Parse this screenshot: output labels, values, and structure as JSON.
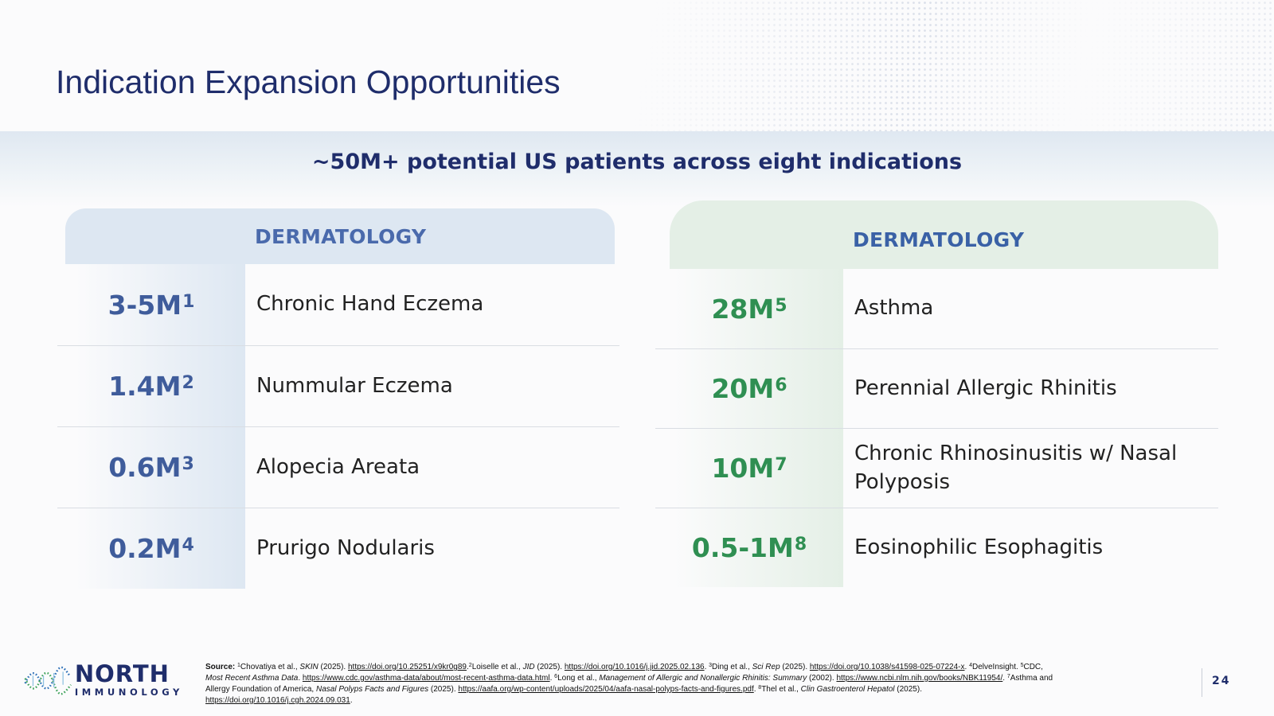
{
  "title": "Indication Expansion Opportunities",
  "subtitle": "~50M+ potential US patients across eight indications",
  "left_panel": {
    "header": "DERMATOLOGY",
    "rows": [
      {
        "value": "3-5M",
        "ref": "1",
        "label": "Chronic Hand Eczema"
      },
      {
        "value": "1.4M",
        "ref": "2",
        "label": "Nummular Eczema"
      },
      {
        "value": "0.6M",
        "ref": "3",
        "label": "Alopecia Areata"
      },
      {
        "value": "0.2M",
        "ref": "4",
        "label": "Prurigo Nodularis"
      }
    ]
  },
  "right_panel": {
    "header": "DERMATOLOGY",
    "rows": [
      {
        "value": "28M",
        "ref": "5",
        "label": "Asthma"
      },
      {
        "value": "20M",
        "ref": "6",
        "label": "Perennial Allergic Rhinitis"
      },
      {
        "value": "10M",
        "ref": "7",
        "label": "Chronic Rhinosinusitis w/ Nasal Polyposis"
      },
      {
        "value": "0.5-1M",
        "ref": "8",
        "label": "Eosinophilic Esophagitis"
      }
    ]
  },
  "logo": {
    "line1": "NORTH",
    "line2": "IMMUNOLOGY"
  },
  "source": {
    "label": "Source:",
    "s1": {
      "sup": "1",
      "text": "Chovatiya et al., ",
      "ital": "SKIN",
      "after": " (2025). ",
      "link": "https://doi.org/10.25251/x9kr0g89",
      "end": "."
    },
    "s2": {
      "sup": "2",
      "text": "Loiselle et al., ",
      "ital": "JID",
      "after": " (2025). ",
      "link": "https://doi.org/10.1016/j.jid.2025.02.136",
      "end": ". "
    },
    "s3": {
      "sup": "3",
      "text": "Ding et al., ",
      "ital": "Sci Rep",
      "after": " (2025). ",
      "link": "https://doi.org/10.1038/s41598-025-07224-x",
      "end": ". "
    },
    "s4": {
      "sup": "4",
      "text": "DelveInsight. "
    },
    "s5": {
      "sup": "5",
      "text": "CDC, ",
      "ital": "Most Recent Asthma Data",
      "after": ". ",
      "link": "https://www.cdc.gov/asthma-data/about/most-recent-asthma-data.html",
      "end": ". "
    },
    "s6": {
      "sup": "6",
      "text": "Long et al., ",
      "ital": "Management of Allergic and Nonallergic Rhinitis: Summary",
      "after": " (2002). ",
      "link": "https://www.ncbi.nlm.nih.gov/books/NBK11954/",
      "end": ". "
    },
    "s7": {
      "sup": "7",
      "text": "Asthma and Allergy Foundation of America, ",
      "ital": "Nasal Polyps Facts and Figures",
      "after": " (2025). ",
      "link": "https://aafa.org/wp-content/uploads/2025/04/aafa-nasal-polyps-facts-and-figures.pdf",
      "end": ". "
    },
    "s8": {
      "sup": "8",
      "text": "Thel et al., ",
      "ital": "Clin Gastroenterol Hepatol",
      "after": " (2025). ",
      "link": "https://doi.org/10.1016/j.cgh.2024.09.031",
      "end": "."
    }
  },
  "page_number": "24",
  "colors": {
    "navy": "#1f2d6b",
    "derm_blue": "#3f5c9b",
    "resp_green": "#2f8f52",
    "derm_header_bg": "#dde7f2",
    "resp_header_bg": "#e4efe6"
  }
}
